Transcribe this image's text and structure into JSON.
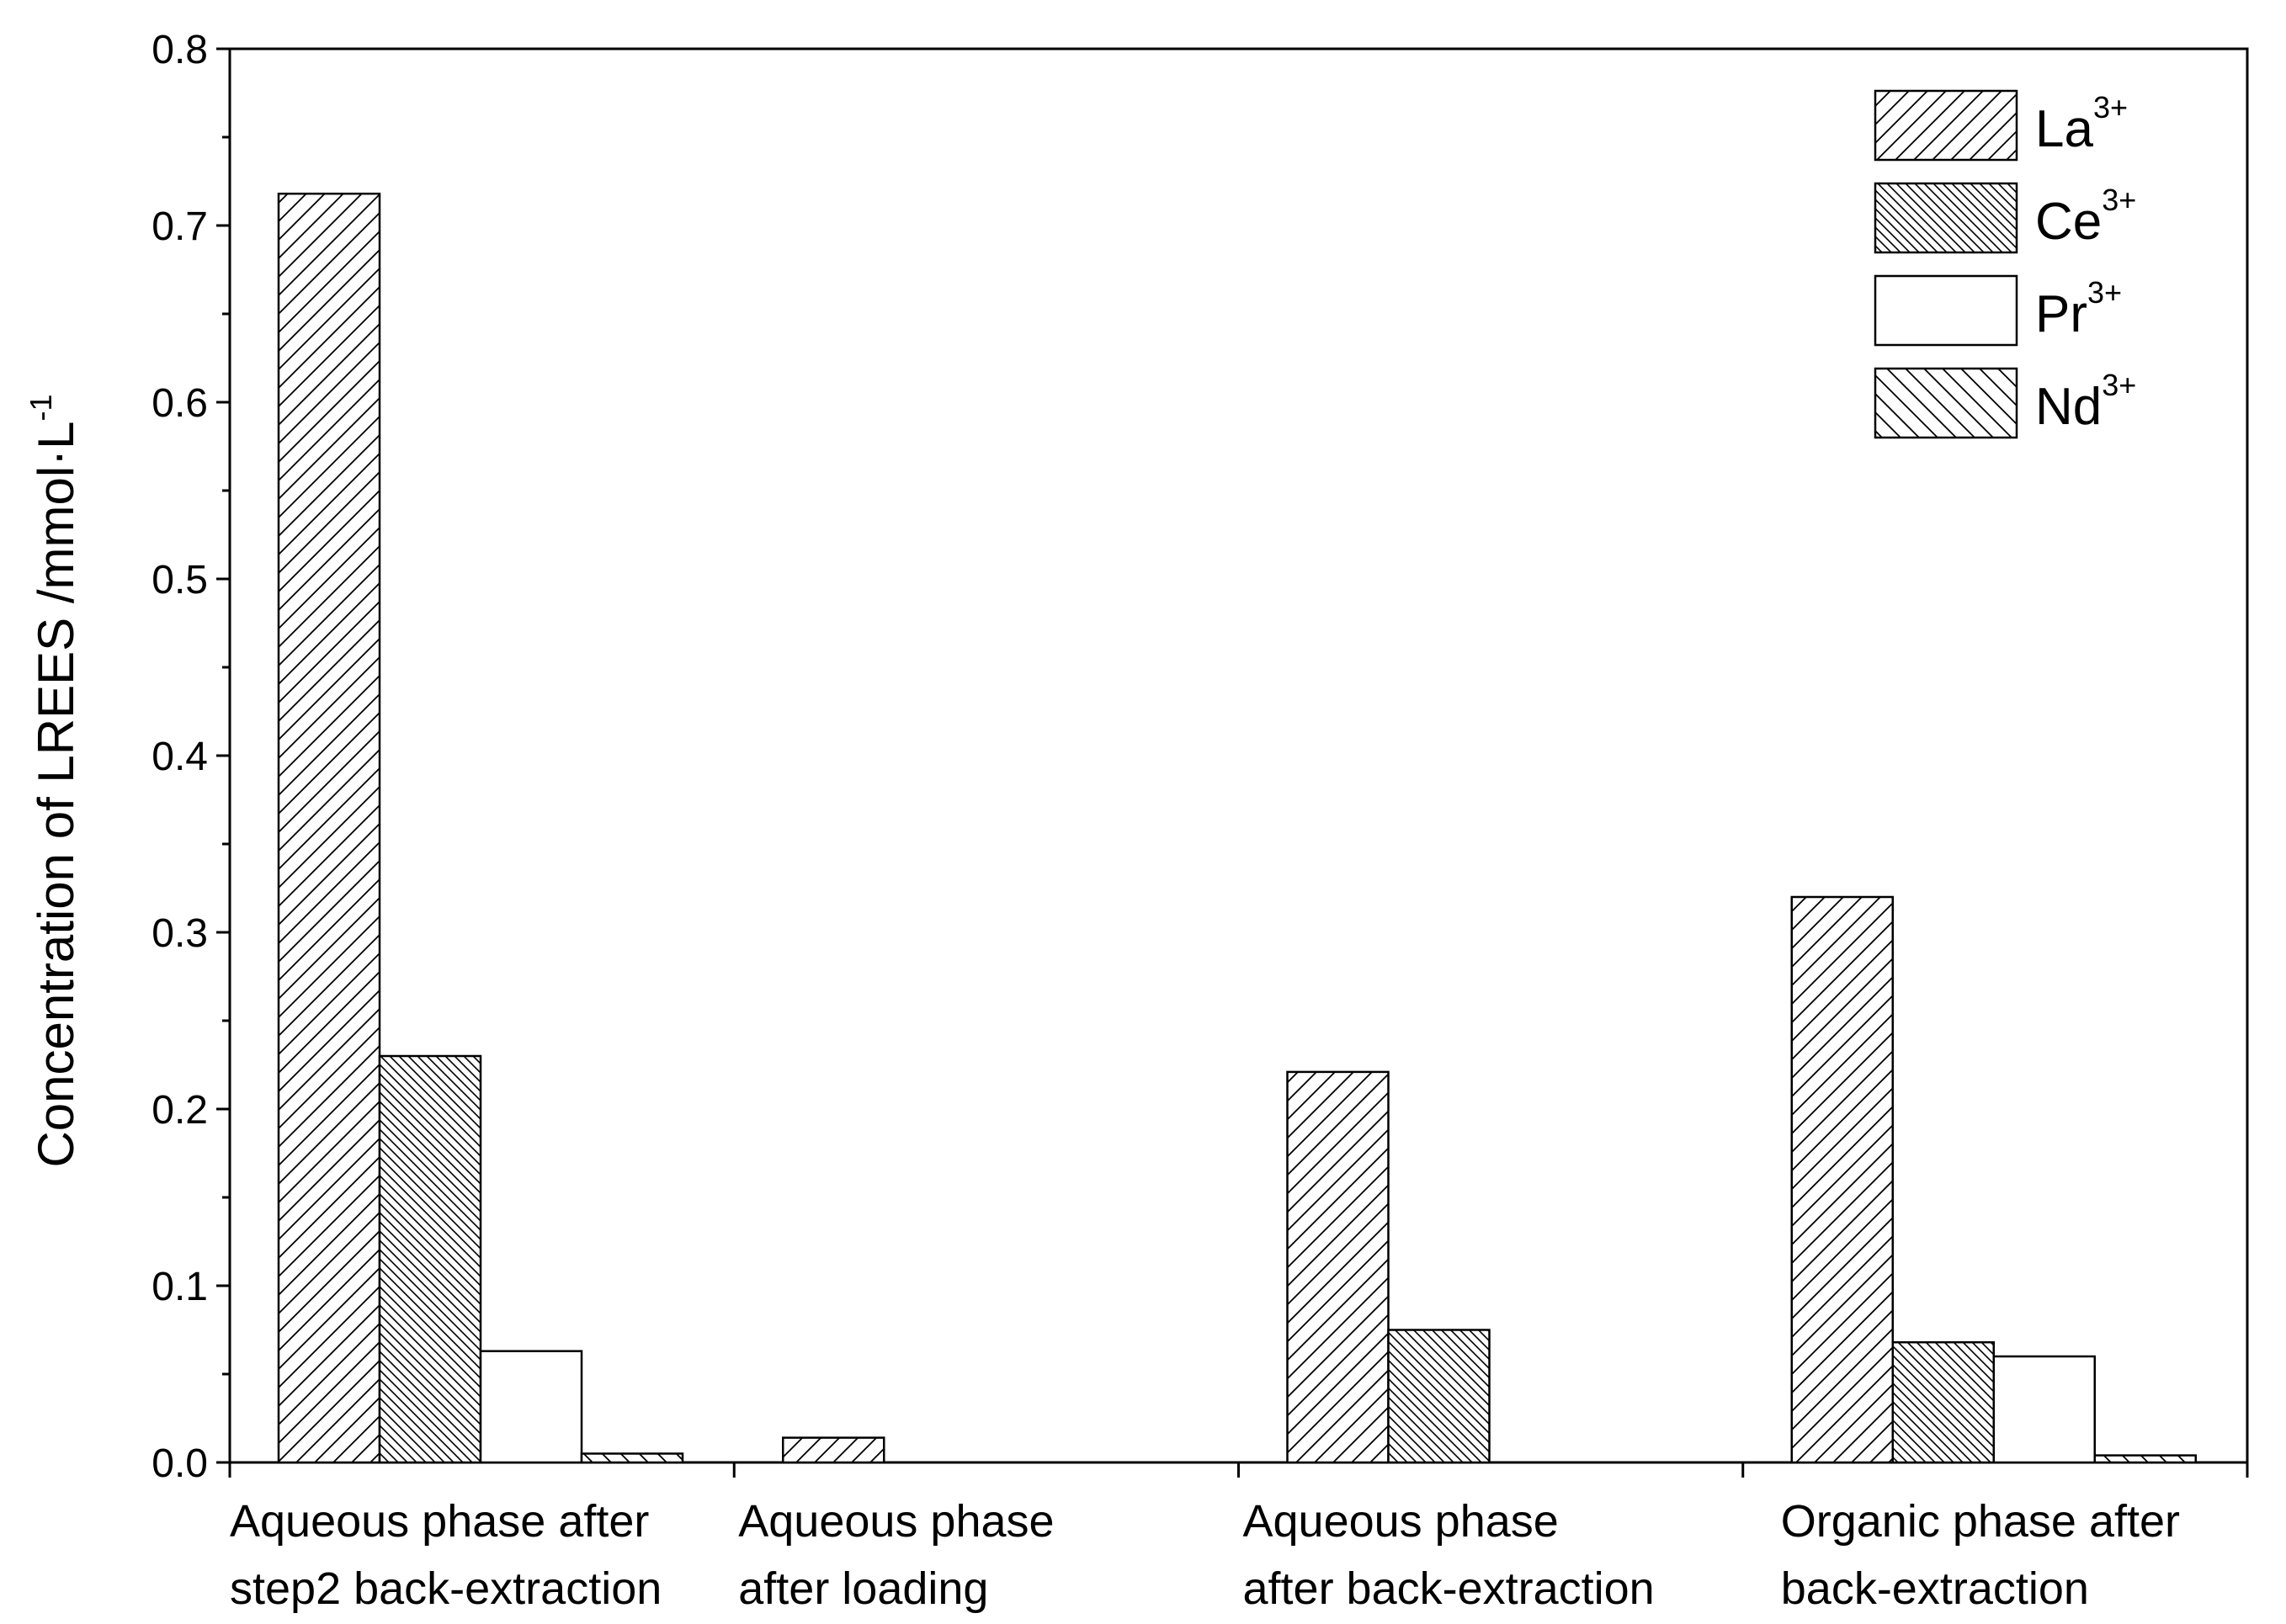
{
  "chart_data": {
    "type": "bar",
    "ylabel": "Concentration of LREES /mmol·L",
    "ylabel_sup": "-1",
    "ylim": [
      0,
      0.8
    ],
    "yticks": [
      "0.0",
      "0.1",
      "0.2",
      "0.3",
      "0.4",
      "0.5",
      "0.6",
      "0.7",
      "0.8"
    ],
    "categories": [
      [
        "Aqueous phase after",
        "step2 back-extraction"
      ],
      [
        "Aqueous phase",
        "after loading"
      ],
      [
        "Aqueous phase",
        "after back-extraction"
      ],
      [
        "Organic phase after",
        "back-extraction"
      ]
    ],
    "series": [
      {
        "name": "La",
        "sup": "3+",
        "pattern": "forward-hatch",
        "values": [
          0.718,
          0.014,
          0.221,
          0.32
        ]
      },
      {
        "name": "Ce",
        "sup": "3+",
        "pattern": "dense-back-hatch",
        "values": [
          0.23,
          0.0,
          0.075,
          0.068
        ]
      },
      {
        "name": "Pr",
        "sup": "3+",
        "pattern": "none",
        "values": [
          0.063,
          0.0,
          0.0,
          0.06
        ]
      },
      {
        "name": "Nd",
        "sup": "3+",
        "pattern": "back-hatch",
        "values": [
          0.005,
          0.0,
          0.0,
          0.004
        ]
      }
    ],
    "grid": false,
    "legend_position": "top-right",
    "colors": {
      "stroke": "#000000",
      "fill": "#ffffff"
    }
  }
}
